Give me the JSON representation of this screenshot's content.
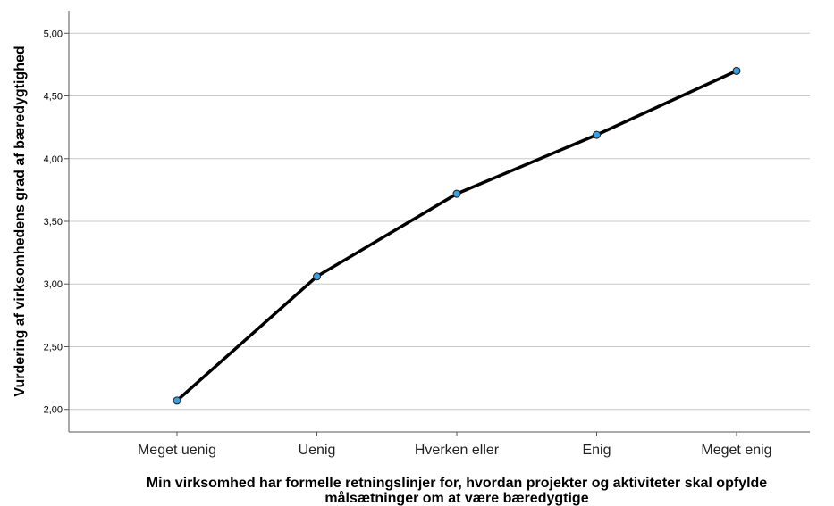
{
  "chart_data": {
    "type": "line",
    "categories": [
      "Meget uenig",
      "Uenig",
      "Hverken eller",
      "Enig",
      "Meget enig"
    ],
    "values": [
      2.07,
      3.06,
      3.72,
      4.19,
      4.7
    ],
    "xlabel_lines": [
      "Min virksomhed har formelle retningslinjer for, hvordan projekter og aktiviteter skal opfylde",
      "målsætninger om at være bæredygtige"
    ],
    "ylabel": "Vurdering af virksomhedens grad af bæredygtighed",
    "ylim": [
      1.82,
      5.18
    ],
    "yticks": [
      2.0,
      2.5,
      3.0,
      3.5,
      4.0,
      4.5,
      5.0
    ],
    "ytick_labels": [
      "2,00",
      "2,50",
      "3,00",
      "3,50",
      "4,00",
      "4,50",
      "5,00"
    ],
    "grid": "horizontal",
    "legend": "none",
    "colors": {
      "line": "#000000",
      "marker": "#3d9ee0",
      "grid": "#c8c8c8"
    }
  }
}
